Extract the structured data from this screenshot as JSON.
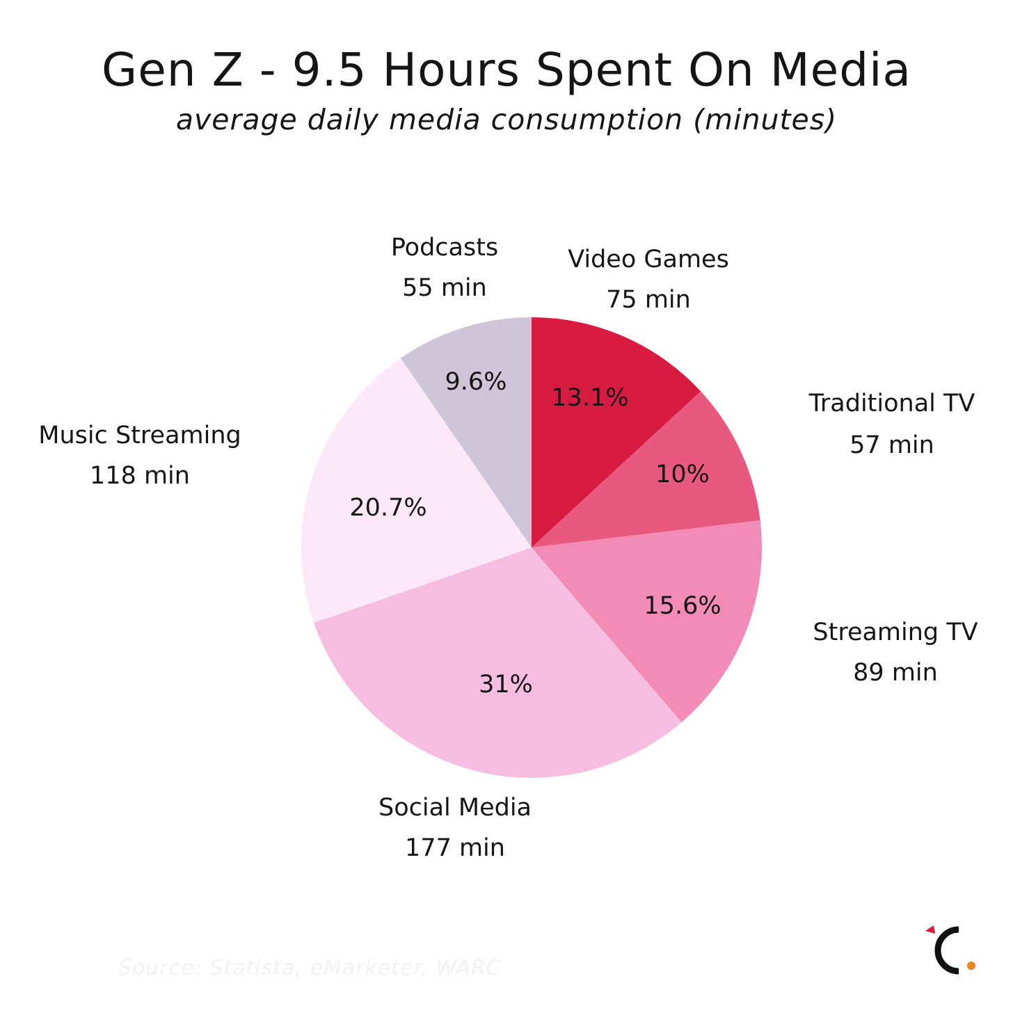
{
  "header": {
    "title": "Gen Z - 9.5 Hours Spent On Media",
    "subtitle": "average daily media consumption (minutes)"
  },
  "footer": {
    "source": "Source: Statista, eMarketer, WARC"
  },
  "colors": {
    "video_games": "#d81b41",
    "traditional_tv": "#e9587e",
    "streaming_tv": "#f28cb6",
    "social_media": "#f6bde0",
    "music_streaming": "#fde8f9",
    "podcasts": "#cec5d8",
    "logo_accent": "#e8851e",
    "logo_red": "#d81b41"
  },
  "icons": {
    "brand_logo": "visual-capitalist-c-logo"
  },
  "chart_data": {
    "type": "pie",
    "start_angle_deg": 0,
    "direction": "clockwise",
    "slices": [
      {
        "name": "Video Games",
        "minutes": 75,
        "value_label": "75 min",
        "percent": 13.1,
        "percent_label": "13.1%",
        "color": "#d81b41"
      },
      {
        "name": "Traditional TV",
        "minutes": 57,
        "value_label": "57 min",
        "percent": 10.0,
        "percent_label": "10%",
        "color": "#e9587e"
      },
      {
        "name": "Streaming TV",
        "minutes": 89,
        "value_label": "89 min",
        "percent": 15.6,
        "percent_label": "15.6%",
        "color": "#f28cb6"
      },
      {
        "name": "Social Media",
        "minutes": 177,
        "value_label": "177 min",
        "percent": 31.0,
        "percent_label": "31%",
        "color": "#f6bde0"
      },
      {
        "name": "Music Streaming",
        "minutes": 118,
        "value_label": "118 min",
        "percent": 20.7,
        "percent_label": "20.7%",
        "color": "#fde8f9"
      },
      {
        "name": "Podcasts",
        "minutes": 55,
        "value_label": "55 min",
        "percent": 9.6,
        "percent_label": "9.6%",
        "color": "#cec5d8"
      }
    ]
  }
}
